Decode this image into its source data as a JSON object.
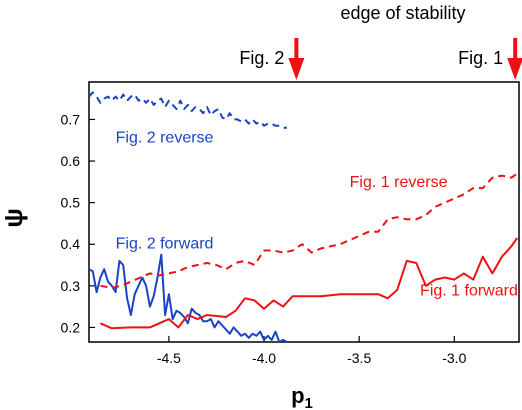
{
  "chart_data": {
    "type": "line",
    "xlabel_main": "p",
    "xlabel_sub": "1",
    "ylabel": "ψ",
    "xlim": [
      -4.92,
      -2.66
    ],
    "ylim": [
      0.165,
      0.79
    ],
    "xticks": [
      -4.5,
      -4.0,
      -3.5,
      -3.0
    ],
    "xtick_labels": [
      "-4.5",
      "-4.0",
      "-3.5",
      "-3.0"
    ],
    "yticks": [
      0.2,
      0.3,
      0.4,
      0.5,
      0.6,
      0.7
    ],
    "ytick_labels": [
      "0.2",
      "0.3",
      "0.4",
      "0.5",
      "0.6",
      "0.7"
    ],
    "top_annotation": "edge of stability",
    "markers": [
      {
        "label": "Fig. 2",
        "x": -3.83,
        "color": "#ee1111"
      },
      {
        "label": "Fig. 1",
        "x": -2.68,
        "color": "#ee1111"
      }
    ],
    "series": [
      {
        "name": "Fig. 2 reverse",
        "color": "#1a44c4",
        "dashed": true,
        "label_x": -4.78,
        "label_y": 0.645,
        "x": [
          -4.92,
          -4.9,
          -4.88,
          -4.86,
          -4.84,
          -4.82,
          -4.8,
          -4.78,
          -4.76,
          -4.74,
          -4.72,
          -4.7,
          -4.68,
          -4.66,
          -4.64,
          -4.62,
          -4.6,
          -4.58,
          -4.56,
          -4.54,
          -4.52,
          -4.5,
          -4.48,
          -4.46,
          -4.44,
          -4.42,
          -4.4,
          -4.38,
          -4.36,
          -4.34,
          -4.32,
          -4.3,
          -4.28,
          -4.26,
          -4.24,
          -4.22,
          -4.2,
          -4.18,
          -4.16,
          -4.14,
          -4.12,
          -4.1,
          -4.08,
          -4.06,
          -4.04,
          -4.02,
          -4.0,
          -3.98,
          -3.96,
          -3.94,
          -3.92,
          -3.9,
          -3.88
        ],
        "y": [
          0.755,
          0.765,
          0.755,
          0.74,
          0.75,
          0.755,
          0.745,
          0.755,
          0.745,
          0.76,
          0.745,
          0.755,
          0.76,
          0.745,
          0.75,
          0.74,
          0.75,
          0.735,
          0.745,
          0.75,
          0.73,
          0.745,
          0.735,
          0.725,
          0.745,
          0.725,
          0.735,
          0.72,
          0.73,
          0.725,
          0.715,
          0.73,
          0.71,
          0.72,
          0.725,
          0.705,
          0.7,
          0.715,
          0.7,
          0.7,
          0.695,
          0.7,
          0.69,
          0.7,
          0.69,
          0.695,
          0.685,
          0.69,
          0.69,
          0.685,
          0.685,
          0.68,
          0.68
        ]
      },
      {
        "name": "Fig. 2 forward",
        "color": "#1a44c4",
        "dashed": false,
        "label_x": -4.78,
        "label_y": 0.39,
        "x": [
          -4.92,
          -4.9,
          -4.88,
          -4.86,
          -4.84,
          -4.82,
          -4.8,
          -4.78,
          -4.76,
          -4.74,
          -4.72,
          -4.7,
          -4.68,
          -4.66,
          -4.64,
          -4.62,
          -4.6,
          -4.58,
          -4.56,
          -4.54,
          -4.52,
          -4.5,
          -4.48,
          -4.46,
          -4.44,
          -4.42,
          -4.4,
          -4.38,
          -4.36,
          -4.34,
          -4.32,
          -4.3,
          -4.28,
          -4.26,
          -4.24,
          -4.22,
          -4.2,
          -4.18,
          -4.16,
          -4.14,
          -4.12,
          -4.1,
          -4.08,
          -4.06,
          -4.04,
          -4.02,
          -4.0,
          -3.98,
          -3.96,
          -3.94,
          -3.92,
          -3.9,
          -3.88
        ],
        "y": [
          0.34,
          0.335,
          0.285,
          0.32,
          0.34,
          0.31,
          0.3,
          0.285,
          0.36,
          0.35,
          0.27,
          0.23,
          0.28,
          0.3,
          0.32,
          0.3,
          0.25,
          0.275,
          0.32,
          0.375,
          0.23,
          0.28,
          0.22,
          0.24,
          0.235,
          0.225,
          0.21,
          0.245,
          0.235,
          0.23,
          0.215,
          0.215,
          0.22,
          0.2,
          0.215,
          0.205,
          0.195,
          0.185,
          0.2,
          0.19,
          0.18,
          0.185,
          0.175,
          0.185,
          0.18,
          0.19,
          0.17,
          0.18,
          0.17,
          0.19,
          0.165,
          0.17,
          0.165
        ]
      },
      {
        "name": "Fig. 1 reverse",
        "color": "#ee1111",
        "dashed": true,
        "label_x": -3.55,
        "label_y": 0.5375,
        "x": [
          -4.86,
          -4.8,
          -4.75,
          -4.7,
          -4.65,
          -4.6,
          -4.55,
          -4.5,
          -4.45,
          -4.4,
          -4.35,
          -4.3,
          -4.25,
          -4.2,
          -4.15,
          -4.1,
          -4.05,
          -4.0,
          -3.95,
          -3.9,
          -3.85,
          -3.8,
          -3.75,
          -3.7,
          -3.65,
          -3.6,
          -3.55,
          -3.5,
          -3.45,
          -3.4,
          -3.35,
          -3.3,
          -3.25,
          -3.2,
          -3.15,
          -3.1,
          -3.05,
          -3.0,
          -2.95,
          -2.9,
          -2.85,
          -2.8,
          -2.75,
          -2.7,
          -2.67
        ],
        "y": [
          0.3,
          0.295,
          0.3,
          0.31,
          0.32,
          0.33,
          0.325,
          0.33,
          0.335,
          0.345,
          0.35,
          0.355,
          0.35,
          0.34,
          0.355,
          0.36,
          0.35,
          0.385,
          0.385,
          0.38,
          0.385,
          0.4,
          0.38,
          0.39,
          0.395,
          0.4,
          0.41,
          0.42,
          0.43,
          0.43,
          0.46,
          0.465,
          0.46,
          0.46,
          0.47,
          0.49,
          0.5,
          0.51,
          0.52,
          0.535,
          0.535,
          0.56,
          0.565,
          0.56,
          0.57
        ]
      },
      {
        "name": "Fig. 1 forward",
        "color": "#ee1111",
        "dashed": false,
        "label_x": -3.18,
        "label_y": 0.277,
        "x": [
          -4.86,
          -4.8,
          -4.7,
          -4.6,
          -4.5,
          -4.45,
          -4.4,
          -4.35,
          -4.3,
          -4.2,
          -4.15,
          -4.1,
          -4.05,
          -4.0,
          -3.95,
          -3.9,
          -3.85,
          -3.8,
          -3.7,
          -3.6,
          -3.5,
          -3.4,
          -3.35,
          -3.3,
          -3.25,
          -3.2,
          -3.15,
          -3.1,
          -3.05,
          -3.0,
          -2.95,
          -2.9,
          -2.85,
          -2.8,
          -2.75,
          -2.7,
          -2.67
        ],
        "y": [
          0.21,
          0.198,
          0.2,
          0.2,
          0.22,
          0.2,
          0.23,
          0.22,
          0.23,
          0.225,
          0.24,
          0.27,
          0.265,
          0.245,
          0.265,
          0.25,
          0.275,
          0.275,
          0.275,
          0.28,
          0.28,
          0.28,
          0.27,
          0.29,
          0.36,
          0.355,
          0.3,
          0.315,
          0.32,
          0.315,
          0.33,
          0.315,
          0.37,
          0.33,
          0.37,
          0.395,
          0.415
        ]
      }
    ]
  }
}
